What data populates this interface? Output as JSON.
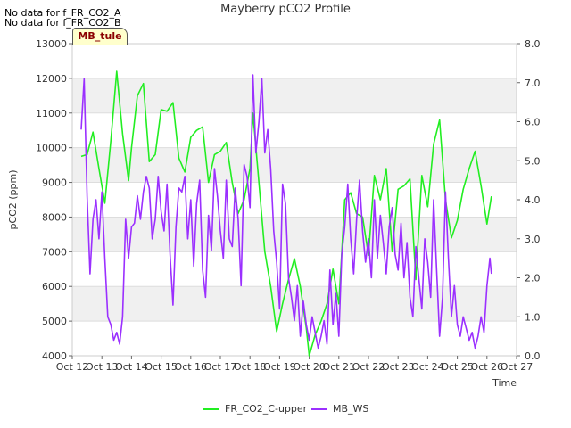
{
  "header": {
    "title": "Mayberry pCO2 Profile",
    "nodata_lines": [
      "No data for f_FR_CO2_A",
      "No data for f_FR_CO2_B"
    ],
    "badge": "MB_tule"
  },
  "chart_data": {
    "type": "line",
    "title": "Mayberry pCO2 Profile",
    "xlabel": "Time",
    "ylabel": "pCO2 (ppm)",
    "x_ticks": [
      "Oct 12",
      "Oct 13",
      "Oct 14",
      "Oct 15",
      "Oct 16",
      "Oct 17",
      "Oct 18",
      "Oct 19",
      "Oct 20",
      "Oct 21",
      "Oct 22",
      "Oct 23",
      "Oct 24",
      "Oct 25",
      "Oct 26",
      "Oct 27"
    ],
    "xlim": [
      12,
      27
    ],
    "ylim_left": [
      4000,
      13000
    ],
    "y_ticks_left": [
      "4000",
      "5000",
      "6000",
      "7000",
      "8000",
      "9000",
      "10000",
      "11000",
      "12000",
      "13000"
    ],
    "ylim_right": [
      0,
      8
    ],
    "y_ticks_right": [
      "0.0",
      "1.0",
      "2.0",
      "3.0",
      "4.0",
      "5.0",
      "6.0",
      "7.0",
      "8.0"
    ],
    "grid": "horizontal bands",
    "legend_position": "bottom-center",
    "series": [
      {
        "name": "FR_CO2_C-upper",
        "axis": "left",
        "color": "#22ee22",
        "x": [
          12.3,
          12.5,
          12.7,
          12.9,
          13.1,
          13.3,
          13.5,
          13.7,
          13.9,
          14.0,
          14.2,
          14.4,
          14.6,
          14.8,
          15.0,
          15.2,
          15.4,
          15.6,
          15.8,
          16.0,
          16.2,
          16.4,
          16.6,
          16.8,
          17.0,
          17.2,
          17.4,
          17.6,
          17.8,
          18.0,
          18.1,
          18.3,
          18.5,
          18.7,
          18.9,
          19.1,
          19.3,
          19.5,
          19.7,
          19.9,
          20.0,
          20.2,
          20.4,
          20.6,
          20.8,
          21.0,
          21.2,
          21.4,
          21.6,
          21.8,
          22.0,
          22.2,
          22.4,
          22.6,
          22.8,
          23.0,
          23.2,
          23.4,
          23.6,
          23.8,
          24.0,
          24.2,
          24.4,
          24.6,
          24.8,
          25.0,
          25.2,
          25.4,
          25.6,
          25.8,
          26.0,
          26.15
        ],
        "values": [
          9750,
          9800,
          10450,
          9400,
          8400,
          10200,
          12200,
          10400,
          9050,
          10000,
          11500,
          11850,
          9600,
          9800,
          11100,
          11050,
          11300,
          9700,
          9300,
          10300,
          10500,
          10600,
          9000,
          9800,
          9900,
          10150,
          9000,
          8100,
          8500,
          9400,
          11000,
          9000,
          7000,
          6000,
          4700,
          5500,
          6200,
          6800,
          6000,
          4800,
          4000,
          4600,
          5000,
          5500,
          6500,
          5500,
          8500,
          8700,
          8100,
          8000,
          6900,
          9200,
          8500,
          9400,
          7000,
          8800,
          8900,
          9100,
          6200,
          9200,
          8300,
          10100,
          10800,
          8500,
          7400,
          7900,
          8800,
          9400,
          9900,
          8900,
          7800,
          8600
        ]
      },
      {
        "name": "MB_WS",
        "axis": "right",
        "color": "#9b30ff",
        "x": [
          12.3,
          12.4,
          12.5,
          12.6,
          12.7,
          12.8,
          12.9,
          13.0,
          13.1,
          13.2,
          13.3,
          13.4,
          13.5,
          13.6,
          13.7,
          13.8,
          13.9,
          14.0,
          14.1,
          14.2,
          14.3,
          14.4,
          14.5,
          14.6,
          14.7,
          14.8,
          14.9,
          15.0,
          15.1,
          15.2,
          15.3,
          15.4,
          15.5,
          15.6,
          15.7,
          15.8,
          15.9,
          16.0,
          16.1,
          16.2,
          16.3,
          16.4,
          16.5,
          16.6,
          16.7,
          16.8,
          16.9,
          17.0,
          17.1,
          17.2,
          17.3,
          17.4,
          17.5,
          17.6,
          17.7,
          17.8,
          17.9,
          18.0,
          18.1,
          18.2,
          18.3,
          18.4,
          18.5,
          18.6,
          18.7,
          18.8,
          18.9,
          19.0,
          19.1,
          19.2,
          19.3,
          19.4,
          19.5,
          19.6,
          19.7,
          19.8,
          19.9,
          20.0,
          20.1,
          20.2,
          20.3,
          20.4,
          20.5,
          20.6,
          20.7,
          20.8,
          20.9,
          21.0,
          21.1,
          21.2,
          21.3,
          21.4,
          21.5,
          21.6,
          21.7,
          21.8,
          21.9,
          22.0,
          22.1,
          22.2,
          22.3,
          22.4,
          22.5,
          22.6,
          22.7,
          22.8,
          22.9,
          23.0,
          23.1,
          23.2,
          23.3,
          23.4,
          23.5,
          23.6,
          23.7,
          23.8,
          23.9,
          24.0,
          24.1,
          24.2,
          24.3,
          24.4,
          24.5,
          24.6,
          24.7,
          24.8,
          24.9,
          25.0,
          25.1,
          25.2,
          25.3,
          25.4,
          25.5,
          25.6,
          25.7,
          25.8,
          25.9,
          26.0,
          26.1,
          26.15
        ],
        "values": [
          5.8,
          7.1,
          4.1,
          2.1,
          3.5,
          4.0,
          3.0,
          4.2,
          2.5,
          1.0,
          0.8,
          0.4,
          0.6,
          0.3,
          1.0,
          3.5,
          2.5,
          3.3,
          3.4,
          4.1,
          3.5,
          4.2,
          4.6,
          4.3,
          3.0,
          3.5,
          4.6,
          3.7,
          3.2,
          4.4,
          2.6,
          1.3,
          3.3,
          4.3,
          4.2,
          4.6,
          3.0,
          4.0,
          2.3,
          3.9,
          4.5,
          2.2,
          1.5,
          3.6,
          2.7,
          4.8,
          4.1,
          3.2,
          2.5,
          4.5,
          3.0,
          2.8,
          4.3,
          3.5,
          1.8,
          4.9,
          4.6,
          3.8,
          7.2,
          5.2,
          6.0,
          7.1,
          5.2,
          5.8,
          4.8,
          3.2,
          2.4,
          1.2,
          4.4,
          3.9,
          2.0,
          1.5,
          0.9,
          1.8,
          0.5,
          1.4,
          0.8,
          0.4,
          1.0,
          0.6,
          0.2,
          0.5,
          0.9,
          0.3,
          2.2,
          0.8,
          1.6,
          0.5,
          2.6,
          3.3,
          4.4,
          3.0,
          2.1,
          3.5,
          4.5,
          3.2,
          2.4,
          3.0,
          2.0,
          4.0,
          2.5,
          3.6,
          2.9,
          2.1,
          3.3,
          3.8,
          2.6,
          2.2,
          3.4,
          2.0,
          2.9,
          1.5,
          1.0,
          2.8,
          2.0,
          1.2,
          3.0,
          2.4,
          1.5,
          4.0,
          2.2,
          0.5,
          1.5,
          4.2,
          2.5,
          1.0,
          1.8,
          0.8,
          0.5,
          1.0,
          0.7,
          0.4,
          0.6,
          0.2,
          0.5,
          1.0,
          0.6,
          1.8,
          2.5,
          2.1
        ]
      }
    ]
  }
}
